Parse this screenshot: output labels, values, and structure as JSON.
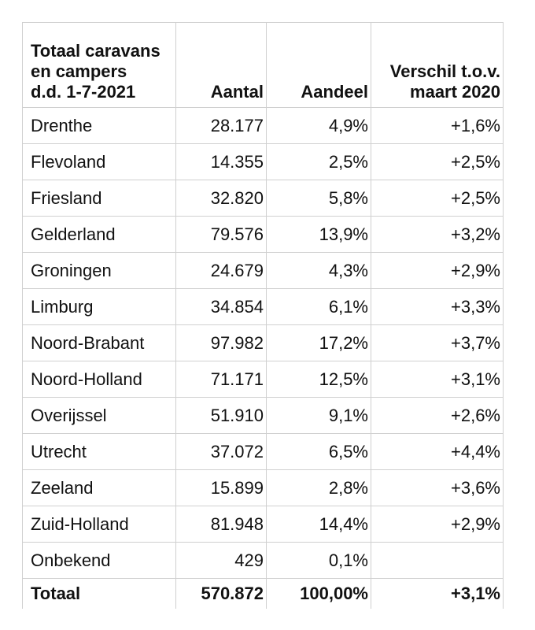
{
  "header": {
    "col1_line1": "Totaal caravans",
    "col1_line2": "en campers",
    "col1_line3": "d.d. 1-7-2021",
    "col2": "Aantal",
    "col3": "Aandeel",
    "col4_line1": "Verschil t.o.v.",
    "col4_line2": "maart 2020"
  },
  "rows": [
    {
      "name": "Drenthe",
      "aantal": "28.177",
      "aandeel": "4,9%",
      "verschil": "+1,6%"
    },
    {
      "name": "Flevoland",
      "aantal": "14.355",
      "aandeel": "2,5%",
      "verschil": "+2,5%"
    },
    {
      "name": "Friesland",
      "aantal": "32.820",
      "aandeel": "5,8%",
      "verschil": "+2,5%"
    },
    {
      "name": "Gelderland",
      "aantal": "79.576",
      "aandeel": "13,9%",
      "verschil": "+3,2%"
    },
    {
      "name": "Groningen",
      "aantal": "24.679",
      "aandeel": "4,3%",
      "verschil": "+2,9%"
    },
    {
      "name": "Limburg",
      "aantal": "34.854",
      "aandeel": "6,1%",
      "verschil": "+3,3%"
    },
    {
      "name": "Noord-Brabant",
      "aantal": "97.982",
      "aandeel": "17,2%",
      "verschil": "+3,7%"
    },
    {
      "name": "Noord-Holland",
      "aantal": "71.171",
      "aandeel": "12,5%",
      "verschil": "+3,1%"
    },
    {
      "name": "Overijssel",
      "aantal": "51.910",
      "aandeel": "9,1%",
      "verschil": "+2,6%"
    },
    {
      "name": "Utrecht",
      "aantal": "37.072",
      "aandeel": "6,5%",
      "verschil": "+4,4%"
    },
    {
      "name": "Zeeland",
      "aantal": "15.899",
      "aandeel": "2,8%",
      "verschil": "+3,6%"
    },
    {
      "name": "Zuid-Holland",
      "aantal": "81.948",
      "aandeel": "14,4%",
      "verschil": "+2,9%"
    },
    {
      "name": "Onbekend",
      "aantal": "429",
      "aandeel": "0,1%",
      "verschil": ""
    }
  ],
  "total": {
    "name": "Totaal",
    "aantal": "570.872",
    "aandeel": "100,00%",
    "verschil": "+3,1%"
  }
}
